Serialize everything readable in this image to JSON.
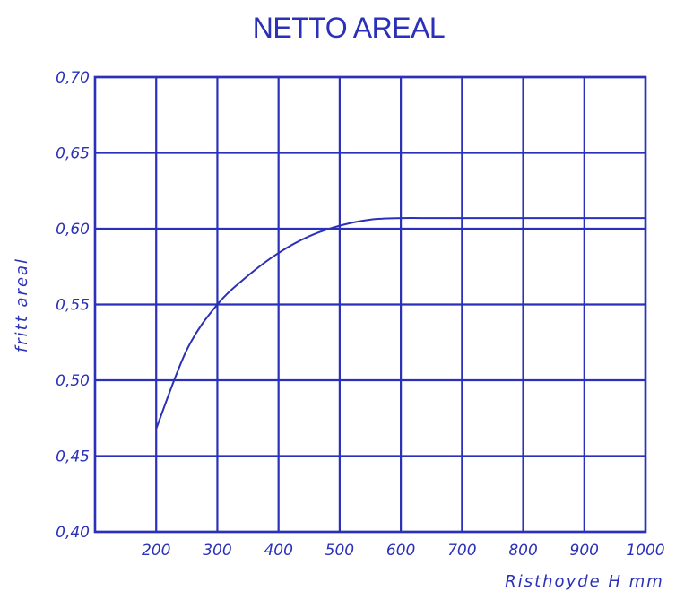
{
  "chart_data": {
    "type": "line",
    "title": "NETTO AREAL",
    "xlabel": "Risthoyde H mm",
    "ylabel": "fritt areal",
    "x_ticks": [
      "200",
      "300",
      "400",
      "500",
      "600",
      "700",
      "800",
      "900",
      "1000"
    ],
    "y_ticks": [
      "0,70",
      "0,65",
      "0,60",
      "0,55",
      "0,50",
      "0,45",
      "0,40"
    ],
    "xlim": [
      100,
      1000
    ],
    "ylim": [
      0.4,
      0.7
    ],
    "grid": true,
    "series": [
      {
        "x": [
          200,
          250,
          300,
          350,
          400,
          450,
          500,
          550,
          600,
          650,
          700,
          800,
          900,
          1000
        ],
        "y": [
          0.468,
          0.52,
          0.55,
          0.569,
          0.584,
          0.595,
          0.602,
          0.606,
          0.607,
          0.607,
          0.607,
          0.607,
          0.607,
          0.607
        ]
      }
    ],
    "reference_line_y": 0.6,
    "color": "#2a30b8"
  }
}
